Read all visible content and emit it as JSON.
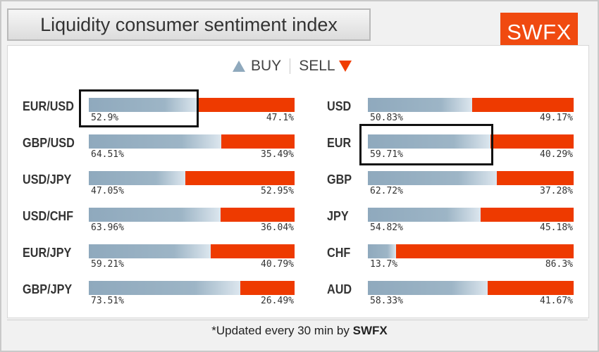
{
  "title": "Liquidity consumer sentiment index",
  "logo": "SWFX",
  "legend": {
    "buy": "BUY",
    "sell": "SELL"
  },
  "footer": {
    "prefix": "*Updated every 30 min by ",
    "brand": "SWFX"
  },
  "colors": {
    "buy": "#8fa9bd",
    "sell": "#ee3a00",
    "logo": "#f04a10"
  },
  "left_column": [
    {
      "label": "EUR/USD",
      "buy": 52.9,
      "sell": 47.1,
      "buy_text": "52.9%",
      "sell_text": "47.1%"
    },
    {
      "label": "GBP/USD",
      "buy": 64.51,
      "sell": 35.49,
      "buy_text": "64.51%",
      "sell_text": "35.49%"
    },
    {
      "label": "USD/JPY",
      "buy": 47.05,
      "sell": 52.95,
      "buy_text": "47.05%",
      "sell_text": "52.95%"
    },
    {
      "label": "USD/CHF",
      "buy": 63.96,
      "sell": 36.04,
      "buy_text": "63.96%",
      "sell_text": "36.04%"
    },
    {
      "label": "EUR/JPY",
      "buy": 59.21,
      "sell": 40.79,
      "buy_text": "59.21%",
      "sell_text": "40.79%"
    },
    {
      "label": "GBP/JPY",
      "buy": 73.51,
      "sell": 26.49,
      "buy_text": "73.51%",
      "sell_text": "26.49%"
    }
  ],
  "right_column": [
    {
      "label": "USD",
      "buy": 50.83,
      "sell": 49.17,
      "buy_text": "50.83%",
      "sell_text": "49.17%"
    },
    {
      "label": "EUR",
      "buy": 59.71,
      "sell": 40.29,
      "buy_text": "59.71%",
      "sell_text": "40.29%"
    },
    {
      "label": "GBP",
      "buy": 62.72,
      "sell": 37.28,
      "buy_text": "62.72%",
      "sell_text": "37.28%"
    },
    {
      "label": "JPY",
      "buy": 54.82,
      "sell": 45.18,
      "buy_text": "54.82%",
      "sell_text": "45.18%"
    },
    {
      "label": "CHF",
      "buy": 13.7,
      "sell": 86.3,
      "buy_text": "13.7%",
      "sell_text": "86.3%"
    },
    {
      "label": "AUD",
      "buy": 58.33,
      "sell": 41.67,
      "buy_text": "58.33%",
      "sell_text": "41.67%"
    }
  ]
}
